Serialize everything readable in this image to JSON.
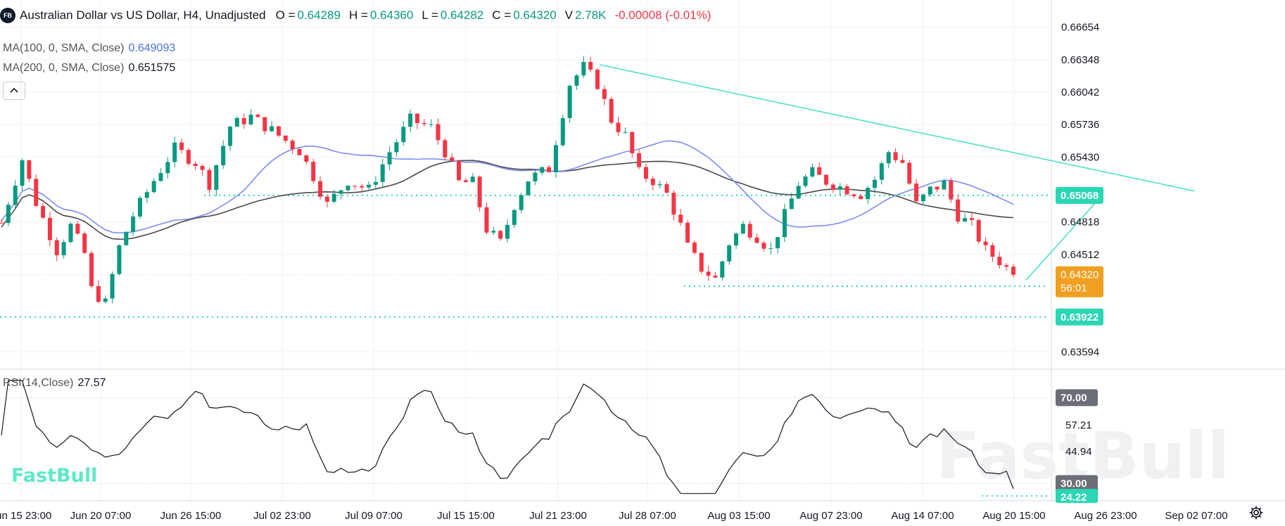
{
  "header": {
    "logo": "FB",
    "title": "Australian Dollar vs US Dollar, H4, Unadjusted",
    "open_label": "O =",
    "open": "0.64289",
    "high_label": "H =",
    "high": "0.64360",
    "low_label": "L =",
    "low": "0.64282",
    "close_label": "C =",
    "close": "0.64320",
    "vol_label": "V",
    "vol": "2.78K",
    "change": "-0.00008 (-0.01%)"
  },
  "indicators": {
    "ma100_label": "MA(100, 0, SMA, Close)",
    "ma100_value": "0.649093",
    "ma100_color": "#4a6fe3",
    "ma200_label": "MA(200, 0, SMA, Close)",
    "ma200_value": "0.651575",
    "ma200_color": "#131722",
    "rsi_label": "RSI(14,Close)",
    "rsi_value": "27.57"
  },
  "colors": {
    "up": "#089981",
    "down": "#f23645",
    "trend": "#4fe0c2",
    "level": "#2bd6b4",
    "ma100": "#7b8ef0",
    "ma200": "#4a4a4a",
    "current": "#f0a020",
    "watermark": "#5fe8c8"
  },
  "watermark_text": "FastBull",
  "chart_data": {
    "type": "candlestick",
    "title": "Australian Dollar vs US Dollar, H4, Unadjusted",
    "price_axis": {
      "ticks": [
        0.66654,
        0.66348,
        0.66042,
        0.65736,
        0.6543,
        0.64818,
        0.64512,
        0.63594
      ],
      "range": [
        0.6343,
        0.6691
      ]
    },
    "time_axis": [
      "Jun 15 23:00",
      "Jun 20 07:00",
      "Jun 26 15:00",
      "Jul 02 23:00",
      "Jul 09 07:00",
      "Jul 15 15:00",
      "Jul 21 23:00",
      "Jul 28 07:00",
      "Aug 03 15:00",
      "Aug 07 23:00",
      "Aug 14 07:00",
      "Aug 20 15:00",
      "Aug 26 23:00",
      "Sep 02 07:00"
    ],
    "price_path": [
      [
        0,
        0.6481
      ],
      [
        3,
        0.6541
      ],
      [
        5,
        0.65
      ],
      [
        8,
        0.6455
      ],
      [
        10,
        0.6478
      ],
      [
        12,
        0.6452
      ],
      [
        13,
        0.6418
      ],
      [
        15,
        0.6405
      ],
      [
        17,
        0.6458
      ],
      [
        19,
        0.6488
      ],
      [
        22,
        0.6521
      ],
      [
        25,
        0.6551
      ],
      [
        28,
        0.6538
      ],
      [
        30,
        0.6518
      ],
      [
        33,
        0.6572
      ],
      [
        36,
        0.6581
      ],
      [
        39,
        0.6568
      ],
      [
        43,
        0.6549
      ],
      [
        45,
        0.6525
      ],
      [
        47,
        0.6498
      ],
      [
        50,
        0.6521
      ],
      [
        53,
        0.6512
      ],
      [
        56,
        0.6548
      ],
      [
        59,
        0.6578
      ],
      [
        62,
        0.6571
      ],
      [
        64,
        0.6548
      ],
      [
        66,
        0.6519
      ],
      [
        68,
        0.6519
      ],
      [
        70,
        0.6475
      ],
      [
        72,
        0.6462
      ],
      [
        74,
        0.6498
      ],
      [
        76,
        0.6522
      ],
      [
        79,
        0.6532
      ],
      [
        82,
        0.6612
      ],
      [
        84,
        0.6628
      ],
      [
        86,
        0.6612
      ],
      [
        88,
        0.6578
      ],
      [
        90,
        0.6563
      ],
      [
        92,
        0.6528
      ],
      [
        94,
        0.6521
      ],
      [
        96,
        0.6508
      ],
      [
        98,
        0.6478
      ],
      [
        99,
        0.6458
      ],
      [
        101,
        0.6438
      ],
      [
        103,
        0.6428
      ],
      [
        105,
        0.6462
      ],
      [
        107,
        0.6478
      ],
      [
        109,
        0.6468
      ],
      [
        111,
        0.6455
      ],
      [
        113,
        0.6488
      ],
      [
        115,
        0.6518
      ],
      [
        117,
        0.6528
      ],
      [
        119,
        0.652
      ],
      [
        121,
        0.6515
      ],
      [
        124,
        0.6508
      ],
      [
        126,
        0.6522
      ],
      [
        128,
        0.6548
      ],
      [
        130,
        0.6538
      ],
      [
        132,
        0.6498
      ],
      [
        134,
        0.6512
      ],
      [
        136,
        0.6518
      ],
      [
        138,
        0.6488
      ],
      [
        140,
        0.6478
      ],
      [
        142,
        0.6455
      ],
      [
        144,
        0.6445
      ],
      [
        146,
        0.6432
      ]
    ],
    "ma100": "0.649093",
    "ma200": "0.651575",
    "levels": [
      0.65068,
      0.6432,
      0.64212,
      0.63922
    ],
    "level_labels": [
      "0.65068",
      "0.64320",
      "0.63922"
    ],
    "current_price": "0.64320",
    "countdown": "56:01",
    "rsi": {
      "label": "RSI(14,Close)",
      "last": 27.57,
      "ticks": [
        70.0,
        57.21,
        44.94,
        30.0,
        24.22
      ],
      "tick_labels": [
        "70.00",
        "57.21",
        "44.94",
        "30.00",
        "24.22"
      ],
      "range": [
        22,
        80
      ]
    }
  }
}
